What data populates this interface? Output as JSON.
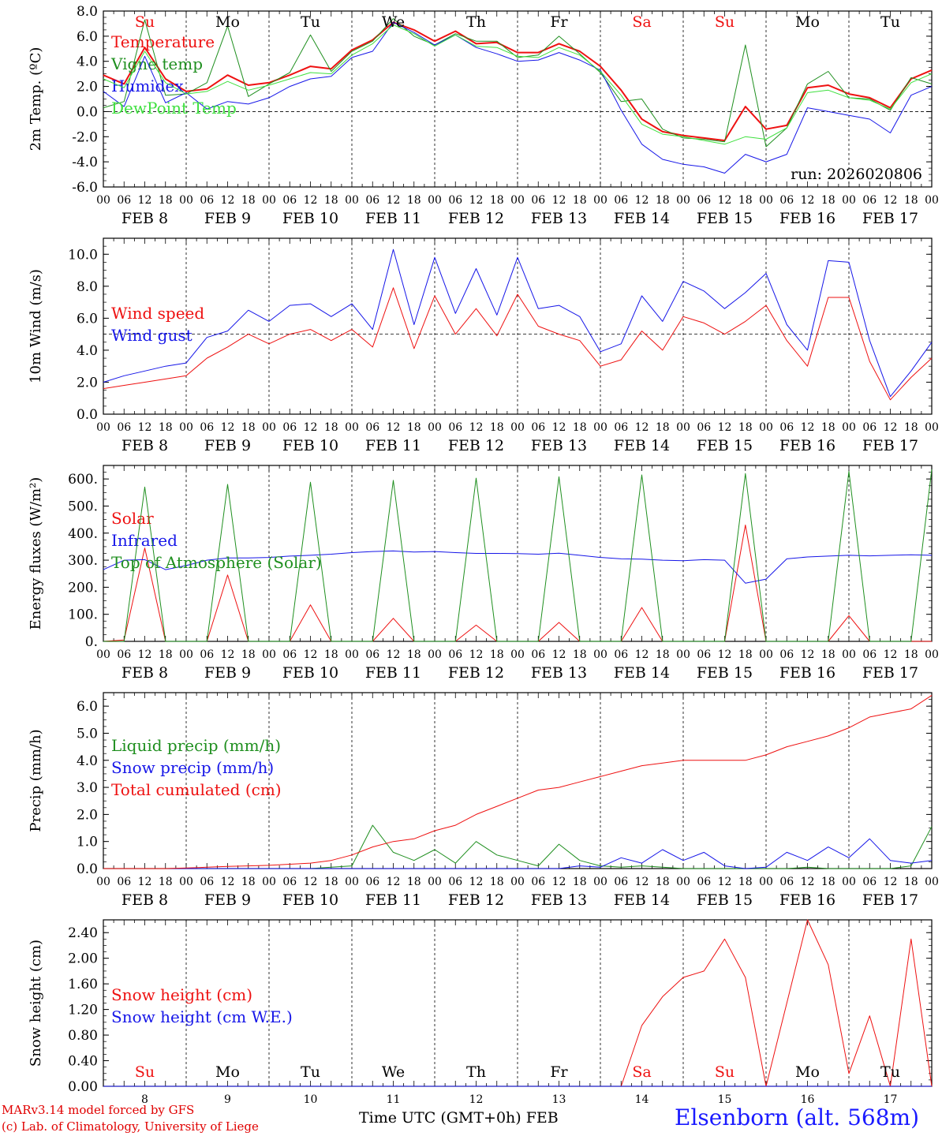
{
  "colors": {
    "red": "#ee1111",
    "green": "#1f8f1f",
    "blue": "#1616e8",
    "lightgreen": "#3fe03f",
    "axis": "#000000"
  },
  "footer": {
    "credit_line1": "MARv3.14 model forced by GFS",
    "credit_line2": "(c) Lab. of Climatology, University of Liege",
    "time_axis_title": "Time UTC (GMT+0h) FEB",
    "station": "Elsenborn (alt. 568m)"
  },
  "chart_data": [
    {
      "type": "line",
      "id": "temp",
      "ylabel": "2m Temp. (ºC)",
      "ylim": [
        -6,
        8
      ],
      "yticks": [
        "-6.0",
        "-4.0",
        "-2.0",
        "0.0",
        "2.0",
        "4.0",
        "6.0",
        "8.0"
      ],
      "ytick_values": [
        -6,
        -4,
        -2,
        0,
        2,
        4,
        6,
        8
      ],
      "reference_line": 0,
      "day_labels": [
        "Su",
        "Mo",
        "Tu",
        "We",
        "Th",
        "Fr",
        "Sa",
        "Su",
        "Mo",
        "Tu"
      ],
      "day_label_red": [
        true,
        false,
        false,
        false,
        false,
        false,
        true,
        true,
        false,
        false
      ],
      "x_hour_labels": [
        "00",
        "06",
        "12",
        "18"
      ],
      "x_date_labels": [
        "FEB  8",
        "FEB  9",
        "FEB 10",
        "FEB 11",
        "FEB 12",
        "FEB 13",
        "FEB 14",
        "FEB 15",
        "FEB 16",
        "FEB 17"
      ],
      "annotation": "run: 2026020806",
      "x_hours": [
        0,
        6,
        12,
        18,
        24,
        30,
        36,
        42,
        48,
        54,
        60,
        66,
        72,
        78,
        84,
        90,
        96,
        102,
        108,
        114,
        120,
        126,
        132,
        138,
        144,
        150,
        156,
        162,
        168,
        174,
        180,
        186,
        192,
        198,
        204,
        210,
        216,
        222,
        228,
        234,
        240
      ],
      "series": [
        {
          "name": "Temperature",
          "color": "red",
          "width": 2,
          "values": [
            2.9,
            2.2,
            5.1,
            2.6,
            1.6,
            1.8,
            2.9,
            2.1,
            2.3,
            2.9,
            3.6,
            3.4,
            4.9,
            5.7,
            7.1,
            6.5,
            5.6,
            6.4,
            5.4,
            5.5,
            4.7,
            4.7,
            5.4,
            4.8,
            3.6,
            1.7,
            -0.6,
            -1.6,
            -1.9,
            -2.1,
            -2.3,
            0.4,
            -1.4,
            -1.1,
            1.9,
            2.1,
            1.4,
            1.1,
            0.3,
            2.6,
            3.3
          ]
        },
        {
          "name": "Vigne temp",
          "color": "green",
          "width": 1,
          "values": [
            0.3,
            0.8,
            7.3,
            1.3,
            1.4,
            2.3,
            6.8,
            1.2,
            2.2,
            3.1,
            6.1,
            3.2,
            4.8,
            5.6,
            7.4,
            6.0,
            5.3,
            6.2,
            5.6,
            5.6,
            4.3,
            4.5,
            6.0,
            4.6,
            3.1,
            0.8,
            1.0,
            -1.4,
            -2.1,
            -2.2,
            -2.4,
            5.3,
            -2.8,
            -1.3,
            2.2,
            3.2,
            1.1,
            1.0,
            0.1,
            2.7,
            2.2
          ]
        },
        {
          "name": "Humidex",
          "color": "blue",
          "width": 1,
          "values": [
            1.6,
            0.4,
            4.4,
            0.7,
            1.5,
            0.2,
            0.8,
            0.6,
            1.1,
            2.0,
            2.6,
            2.8,
            4.3,
            4.8,
            7.1,
            6.3,
            5.3,
            6.1,
            5.1,
            4.6,
            4.0,
            4.1,
            4.7,
            4.1,
            3.3,
            0.1,
            -2.6,
            -3.8,
            -4.2,
            -4.4,
            -4.9,
            -3.4,
            -4.0,
            -3.4,
            0.3,
            0.0,
            -0.3,
            -0.6,
            -1.7,
            1.3,
            2.0
          ]
        },
        {
          "name": "DewPoint Temp",
          "color": "lightgreen",
          "width": 1,
          "values": [
            2.6,
            1.9,
            4.8,
            2.3,
            1.4,
            1.6,
            2.4,
            1.7,
            2.1,
            2.6,
            3.1,
            3.0,
            4.5,
            5.4,
            6.9,
            6.2,
            5.2,
            6.1,
            5.2,
            5.1,
            4.4,
            4.3,
            5.1,
            4.5,
            3.2,
            1.3,
            -1.0,
            -1.8,
            -2.0,
            -2.3,
            -2.6,
            -2.0,
            -2.2,
            -1.3,
            1.5,
            1.7,
            1.1,
            0.9,
            0.2,
            2.3,
            3.0
          ]
        }
      ]
    },
    {
      "type": "line",
      "id": "wind",
      "ylabel": "10m Wind (m/s)",
      "ylim": [
        0,
        11
      ],
      "yticks": [
        "0.0",
        "2.0",
        "4.0",
        "6.0",
        "8.0",
        "10.0"
      ],
      "ytick_values": [
        0,
        2,
        4,
        6,
        8,
        10
      ],
      "reference_line": 5,
      "x_hour_labels": [
        "00",
        "06",
        "12",
        "18"
      ],
      "x_date_labels": [
        "FEB  8",
        "FEB  9",
        "FEB 10",
        "FEB 11",
        "FEB 12",
        "FEB 13",
        "FEB 14",
        "FEB 15",
        "FEB 16",
        "FEB 17"
      ],
      "x_hours": [
        0,
        6,
        12,
        18,
        24,
        30,
        36,
        42,
        48,
        54,
        60,
        66,
        72,
        78,
        84,
        90,
        96,
        102,
        108,
        114,
        120,
        126,
        132,
        138,
        144,
        150,
        156,
        162,
        168,
        174,
        180,
        186,
        192,
        198,
        204,
        210,
        216,
        222,
        228,
        234,
        240
      ],
      "series": [
        {
          "name": "Wind speed",
          "color": "red",
          "width": 1,
          "values": [
            1.6,
            1.8,
            2.0,
            2.2,
            2.4,
            3.5,
            4.2,
            5.0,
            4.4,
            5.0,
            5.3,
            4.6,
            5.3,
            4.2,
            7.9,
            4.1,
            7.4,
            5.0,
            6.6,
            4.9,
            7.5,
            5.5,
            5.0,
            4.6,
            3.0,
            3.4,
            5.2,
            4.0,
            6.1,
            5.7,
            5.0,
            5.8,
            6.8,
            4.6,
            3.0,
            7.3,
            7.3,
            3.3,
            0.9,
            2.3,
            3.5
          ]
        },
        {
          "name": "Wind gust",
          "color": "blue",
          "width": 1,
          "values": [
            2.0,
            2.4,
            2.7,
            3.0,
            3.2,
            4.8,
            5.2,
            6.5,
            5.8,
            6.8,
            6.9,
            6.1,
            6.9,
            5.3,
            10.3,
            5.6,
            9.8,
            6.3,
            9.1,
            6.2,
            9.8,
            6.6,
            6.8,
            6.1,
            3.9,
            4.4,
            7.4,
            5.8,
            8.3,
            7.7,
            6.6,
            7.6,
            8.8,
            5.6,
            4.0,
            9.6,
            9.5,
            4.6,
            1.1,
            2.7,
            4.5
          ]
        }
      ]
    },
    {
      "type": "line",
      "id": "energy",
      "ylabel": "Energy fluxes (W/m²)",
      "ylim": [
        0,
        650
      ],
      "yticks": [
        "0.",
        "100.",
        "200.",
        "300.",
        "400.",
        "500.",
        "600."
      ],
      "ytick_values": [
        0,
        100,
        200,
        300,
        400,
        500,
        600
      ],
      "x_hour_labels": [
        "00",
        "06",
        "12",
        "18"
      ],
      "x_date_labels": [
        "FEB  8",
        "FEB  9",
        "FEB 10",
        "FEB 11",
        "FEB 12",
        "FEB 13",
        "FEB 14",
        "FEB 15",
        "FEB 16",
        "FEB 17"
      ],
      "x_hours": [
        0,
        6,
        12,
        18,
        24,
        30,
        36,
        42,
        48,
        54,
        60,
        66,
        72,
        78,
        84,
        90,
        96,
        102,
        108,
        114,
        120,
        126,
        132,
        138,
        144,
        150,
        156,
        162,
        168,
        174,
        180,
        186,
        192,
        198,
        204,
        210,
        216,
        222,
        228,
        234,
        240
      ],
      "series": [
        {
          "name": "Solar",
          "color": "red",
          "width": 1,
          "values": [
            0,
            5,
            345,
            0,
            0,
            0,
            245,
            0,
            0,
            0,
            135,
            0,
            0,
            0,
            85,
            0,
            0,
            0,
            60,
            0,
            0,
            0,
            70,
            0,
            0,
            0,
            125,
            0,
            0,
            0,
            0,
            430,
            0,
            0,
            0,
            0,
            95,
            0,
            0,
            0,
            0
          ]
        },
        {
          "name": "Infrared",
          "color": "blue",
          "width": 1,
          "values": [
            265,
            300,
            302,
            265,
            280,
            300,
            308,
            308,
            310,
            315,
            318,
            322,
            328,
            332,
            334,
            330,
            332,
            328,
            325,
            325,
            324,
            322,
            326,
            318,
            310,
            305,
            304,
            300,
            298,
            302,
            300,
            215,
            230,
            305,
            312,
            315,
            318,
            316,
            318,
            320,
            318
          ]
        },
        {
          "name": "Top of Atmosphere (Solar)",
          "color": "green",
          "width": 1,
          "values": [
            0,
            0,
            570,
            0,
            0,
            0,
            580,
            0,
            0,
            0,
            588,
            0,
            0,
            0,
            595,
            0,
            0,
            0,
            603,
            0,
            0,
            0,
            608,
            0,
            0,
            0,
            615,
            0,
            0,
            0,
            0,
            620,
            0,
            0,
            0,
            0,
            628,
            0,
            0,
            0,
            635
          ]
        }
      ]
    },
    {
      "type": "line",
      "id": "precip",
      "ylabel": "Precip (mm/h)",
      "ylim": [
        0,
        6.5
      ],
      "yticks": [
        "0.0",
        "1.0",
        "2.0",
        "3.0",
        "4.0",
        "5.0",
        "6.0"
      ],
      "ytick_values": [
        0,
        1,
        2,
        3,
        4,
        5,
        6
      ],
      "x_hour_labels": [
        "00",
        "06",
        "12",
        "18"
      ],
      "x_date_labels": [
        "FEB  8",
        "FEB  9",
        "FEB 10",
        "FEB 11",
        "FEB 12",
        "FEB 13",
        "FEB 14",
        "FEB 15",
        "FEB 16",
        "FEB 17"
      ],
      "x_hours": [
        0,
        6,
        12,
        18,
        24,
        30,
        36,
        42,
        48,
        54,
        60,
        66,
        72,
        78,
        84,
        90,
        96,
        102,
        108,
        114,
        120,
        126,
        132,
        138,
        144,
        150,
        156,
        162,
        168,
        174,
        180,
        186,
        192,
        198,
        204,
        210,
        216,
        222,
        228,
        234,
        240
      ],
      "series": [
        {
          "name": "Liquid precip (mm/h)",
          "color": "green",
          "width": 1,
          "values": [
            0,
            0,
            0,
            0,
            0,
            0,
            0,
            0,
            0,
            0,
            0,
            0.05,
            0.1,
            1.6,
            0.6,
            0.3,
            0.7,
            0.2,
            1.0,
            0.5,
            0.3,
            0.1,
            0.9,
            0.3,
            0.1,
            0.05,
            0.1,
            0.05,
            0,
            0,
            0,
            0,
            0,
            0,
            0.05,
            0,
            0,
            0,
            0,
            0.1,
            1.55
          ]
        },
        {
          "name": "Snow precip (mm/h)",
          "color": "blue",
          "width": 1,
          "values": [
            0,
            0,
            0,
            0,
            0,
            0,
            0,
            0,
            0,
            0,
            0,
            0,
            0,
            0,
            0,
            0,
            0,
            0,
            0,
            0,
            0,
            0,
            0,
            0.1,
            0.05,
            0.4,
            0.2,
            0.7,
            0.3,
            0.6,
            0.1,
            0,
            0.05,
            0.6,
            0.3,
            0.8,
            0.4,
            1.1,
            0.3,
            0.2,
            0.3
          ]
        },
        {
          "name": "Total cumulated (cm)",
          "color": "red",
          "width": 1,
          "values": [
            0,
            0,
            0,
            0,
            0.02,
            0.05,
            0.08,
            0.1,
            0.12,
            0.16,
            0.2,
            0.3,
            0.5,
            0.8,
            1.0,
            1.1,
            1.4,
            1.6,
            2.0,
            2.3,
            2.6,
            2.9,
            3.0,
            3.2,
            3.4,
            3.6,
            3.8,
            3.9,
            4.0,
            4.0,
            4.0,
            4.0,
            4.2,
            4.5,
            4.7,
            4.9,
            5.2,
            5.6,
            5.75,
            5.9,
            6.4
          ]
        }
      ]
    },
    {
      "type": "line",
      "id": "snow",
      "ylabel": "Snow height (cm)",
      "ylim": [
        0,
        2.6
      ],
      "yticks": [
        "0.00",
        "0.40",
        "0.80",
        "1.20",
        "1.60",
        "2.00",
        "2.40"
      ],
      "ytick_values": [
        0,
        0.4,
        0.8,
        1.2,
        1.6,
        2.0,
        2.4
      ],
      "day_labels": [
        "Su",
        "Mo",
        "Tu",
        "We",
        "Th",
        "Fr",
        "Sa",
        "Su",
        "Mo",
        "Tu"
      ],
      "day_label_red": [
        true,
        false,
        false,
        false,
        false,
        false,
        true,
        true,
        false,
        false
      ],
      "x_day_labels": [
        "8",
        "9",
        "10",
        "11",
        "12",
        "13",
        "14",
        "15",
        "16",
        "17"
      ],
      "x_hours": [
        0,
        6,
        12,
        18,
        24,
        30,
        36,
        42,
        48,
        54,
        60,
        66,
        72,
        78,
        84,
        90,
        96,
        102,
        108,
        114,
        120,
        126,
        132,
        138,
        144,
        150,
        156,
        162,
        168,
        174,
        180,
        186,
        192,
        198,
        204,
        210,
        216,
        222,
        228,
        234,
        240
      ],
      "series": [
        {
          "name": "Snow height (cm)",
          "color": "red",
          "width": 1,
          "values": [
            0,
            0,
            0,
            0,
            0,
            0,
            0,
            0,
            0,
            0,
            0,
            0,
            0,
            0,
            0,
            0,
            0,
            0,
            0,
            0,
            0,
            0,
            0,
            0,
            0,
            0,
            0.95,
            1.4,
            1.7,
            1.8,
            2.3,
            1.7,
            0,
            1.3,
            2.6,
            1.9,
            0.2,
            1.1,
            0,
            2.3,
            0
          ]
        },
        {
          "name": "Snow height (cm W.E.)",
          "color": "blue",
          "width": 1,
          "values": [
            0,
            0,
            0,
            0,
            0,
            0,
            0,
            0,
            0,
            0,
            0,
            0,
            0,
            0,
            0,
            0,
            0,
            0,
            0,
            0,
            0,
            0,
            0,
            0,
            0,
            0,
            0,
            0,
            0,
            0,
            0,
            0,
            0,
            0,
            0,
            0,
            0,
            0,
            0,
            0,
            0
          ]
        }
      ]
    }
  ]
}
